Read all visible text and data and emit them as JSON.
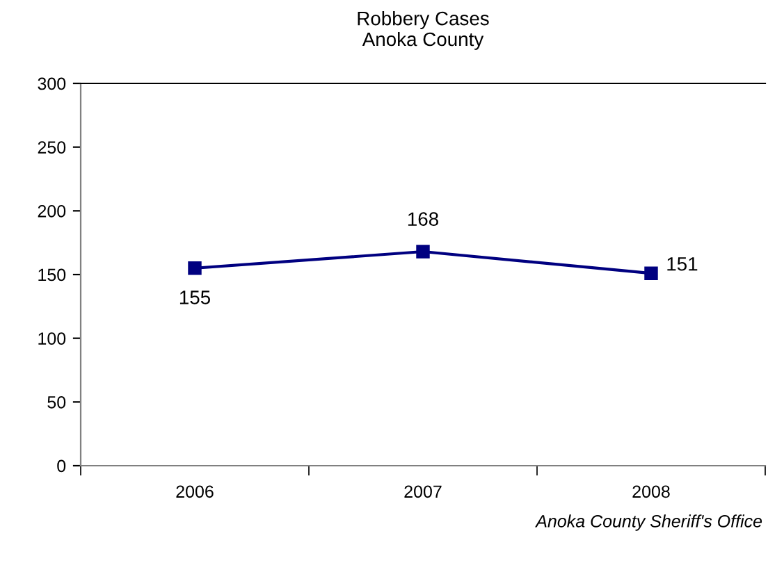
{
  "chart_data": {
    "type": "line",
    "title": "Robbery Cases\nAnoka County",
    "categories": [
      "2006",
      "2007",
      "2008"
    ],
    "series": [
      {
        "color": "#000080",
        "values": [
          155,
          168,
          151
        ]
      }
    ],
    "ylim": [
      0,
      300
    ],
    "yticks": [
      0,
      50,
      100,
      150,
      200,
      250,
      300
    ],
    "grid": false,
    "legend": false,
    "marker": "square",
    "line_style": "solid",
    "data_labels": true,
    "annotations": [
      "Anoka County Sheriff's Office"
    ]
  }
}
